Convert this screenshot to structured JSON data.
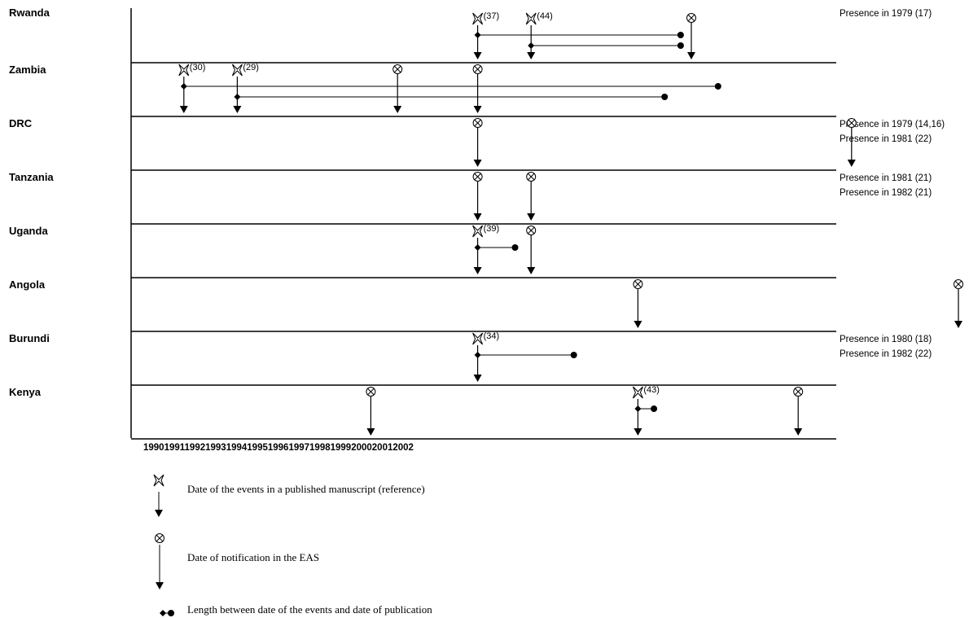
{
  "countries": [
    {
      "name": "Rwanda",
      "notes": [
        "Presence in 1979 (17)"
      ],
      "published": [
        {
          "year": 1996,
          "ref": "(37)",
          "end": 1999.8
        },
        {
          "year": 1997,
          "ref": "(44)",
          "end": 1999.8
        }
      ],
      "notifications": [
        2000
      ]
    },
    {
      "name": "Zambia",
      "notes": [],
      "published": [
        {
          "year": 1990.5,
          "ref": "(30)",
          "end": 2000.5
        },
        {
          "year": 1991.5,
          "ref": "(29)",
          "end": 1999.5
        }
      ],
      "notifications": [
        1994.5,
        1996
      ]
    },
    {
      "name": "DRC",
      "notes": [
        "Presence in 1979 (14,16)",
        "Presence in 1981 (22)"
      ],
      "published": [],
      "notifications": [
        1996,
        2003
      ]
    },
    {
      "name": "Tanzania",
      "notes": [
        "Presence in 1981 (21)",
        "Presence in 1982 (21)"
      ],
      "published": [],
      "notifications": [
        1996,
        1997
      ]
    },
    {
      "name": "Uganda",
      "notes": [],
      "published": [
        {
          "year": 1996,
          "ref": "(39)",
          "end": 1996.7
        }
      ],
      "notifications": [
        1997
      ]
    },
    {
      "name": "Angola",
      "notes": [],
      "published": [],
      "notifications": [
        1999,
        2005
      ]
    },
    {
      "name": "Burundi",
      "notes": [
        "Presence in 1980 (18)",
        "Presence in 1982 (22)"
      ],
      "published": [
        {
          "year": 1996,
          "ref": "(34)",
          "end": 1997.8
        }
      ],
      "notifications": []
    },
    {
      "name": "Kenya",
      "notes": [],
      "published": [
        {
          "year": 1999,
          "ref": "(43)",
          "end": 1999.3
        }
      ],
      "notifications": [
        1994,
        2002
      ]
    }
  ],
  "x_axis": {
    "years": [
      "1990",
      "1991",
      "1992",
      "1993",
      "1994",
      "1995",
      "1996",
      "1997",
      "1998",
      "1999",
      "2000",
      "2001",
      "2002"
    ],
    "label_text": "1990199119921993199419951996199719981999200020012002"
  },
  "legend": {
    "published": "Date of the events in a published manuscript (reference)",
    "notification": "Date of notification in the EAS",
    "length": "Length between date of the events and date of publication"
  }
}
